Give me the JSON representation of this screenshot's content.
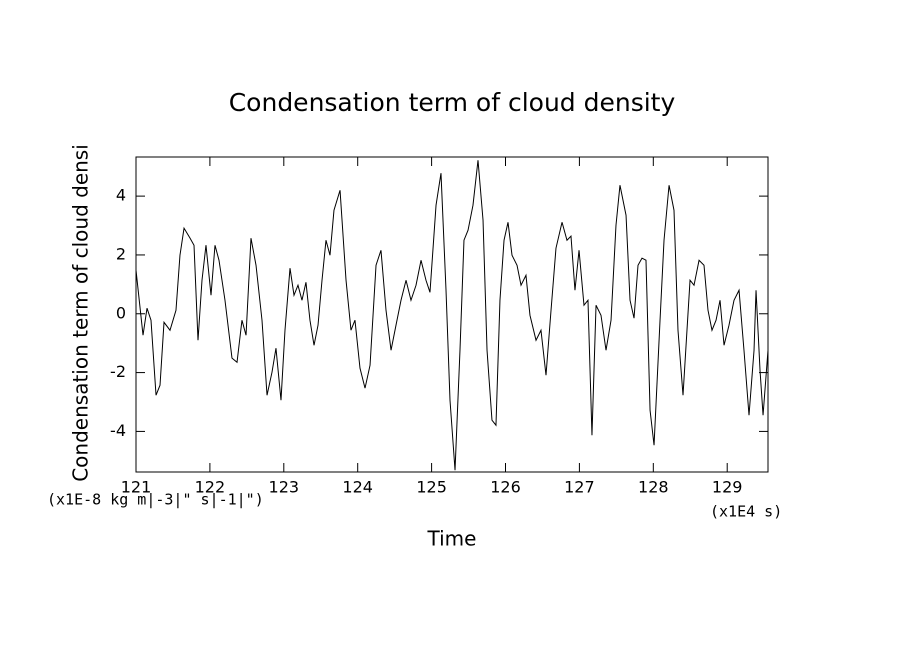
{
  "chart_data": {
    "type": "line",
    "title": "Condensation term of cloud density",
    "x_label": "Time",
    "y_label": "Condensation term of cloud densi",
    "x_unit": "(x1E4 s)",
    "y_unit": "(x1E-8 kg m|-3|\" s|-1|\")",
    "x": [
      121.0,
      121.095,
      121.149,
      121.203,
      121.271,
      121.325,
      121.379,
      121.46,
      121.541,
      121.595,
      121.65,
      121.731,
      121.785,
      121.839,
      121.893,
      121.947,
      122.015,
      122.069,
      122.123,
      122.204,
      122.299,
      122.367,
      122.434,
      122.489,
      122.556,
      122.624,
      122.705,
      122.773,
      122.84,
      122.894,
      122.962,
      123.016,
      123.084,
      123.138,
      123.192,
      123.246,
      123.3,
      123.354,
      123.409,
      123.463,
      123.517,
      123.571,
      123.625,
      123.679,
      123.761,
      123.842,
      123.909,
      123.963,
      124.031,
      124.099,
      124.167,
      124.248,
      124.315,
      124.383,
      124.451,
      124.518,
      124.586,
      124.654,
      124.721,
      124.789,
      124.857,
      124.924,
      124.978,
      125.06,
      125.127,
      125.195,
      125.249,
      125.317,
      125.384,
      125.438,
      125.493,
      125.56,
      125.628,
      125.696,
      125.75,
      125.817,
      125.871,
      125.925,
      125.98,
      126.034,
      126.088,
      126.156,
      126.21,
      126.277,
      126.331,
      126.413,
      126.48,
      126.548,
      126.616,
      126.683,
      126.765,
      126.832,
      126.886,
      126.94,
      126.995,
      127.062,
      127.116,
      127.17,
      127.225,
      127.292,
      127.36,
      127.428,
      127.495,
      127.549,
      127.631,
      127.685,
      127.739,
      127.793,
      127.847,
      127.901,
      127.956,
      128.01,
      128.091,
      128.145,
      128.213,
      128.28,
      128.334,
      128.402,
      128.497,
      128.551,
      128.619,
      128.686,
      128.74,
      128.794,
      128.849,
      128.903,
      128.957,
      129.024,
      129.092,
      129.16,
      129.227,
      129.295,
      129.363,
      129.39,
      129.444,
      129.485,
      129.552
    ],
    "series": [
      {
        "color": "#000000",
        "values": [
          1.48,
          -0.73,
          0.19,
          -0.22,
          -2.77,
          -2.43,
          -0.29,
          -0.56,
          0.12,
          1.99,
          2.91,
          2.57,
          2.33,
          -0.9,
          1.14,
          2.33,
          0.63,
          2.33,
          1.82,
          0.46,
          -1.51,
          -1.65,
          -0.22,
          -0.73,
          2.57,
          1.65,
          -0.22,
          -2.77,
          -1.99,
          -1.17,
          -2.94,
          -0.56,
          1.55,
          0.63,
          0.97,
          0.46,
          1.07,
          -0.22,
          -1.07,
          -0.39,
          1.14,
          2.5,
          1.99,
          3.52,
          4.2,
          1.14,
          -0.56,
          -0.22,
          -1.85,
          -2.53,
          -1.75,
          1.65,
          2.16,
          0.12,
          -1.24,
          -0.39,
          0.46,
          1.14,
          0.46,
          0.97,
          1.82,
          1.14,
          0.73,
          3.69,
          4.78,
          0.8,
          -2.94,
          -5.32,
          -1.24,
          2.5,
          2.84,
          3.69,
          5.22,
          3.18,
          -1.24,
          -3.62,
          -3.79,
          0.46,
          2.5,
          3.11,
          1.99,
          1.65,
          0.97,
          1.31,
          -0.05,
          -0.9,
          -0.56,
          -2.09,
          0.12,
          2.23,
          3.11,
          2.5,
          2.64,
          0.8,
          2.16,
          0.29,
          0.46,
          -4.13,
          0.29,
          -0.05,
          -1.24,
          -0.22,
          3.01,
          4.37,
          3.35,
          0.46,
          -0.15,
          1.65,
          1.89,
          1.82,
          -3.28,
          -4.47,
          -0.22,
          2.5,
          4.37,
          3.52,
          -0.56,
          -2.77,
          1.14,
          0.97,
          1.82,
          1.65,
          0.12,
          -0.56,
          -0.22,
          0.46,
          -1.07,
          -0.39,
          0.46,
          0.8,
          -1.24,
          -3.45,
          -1.24,
          0.8,
          -1.92,
          -3.45,
          -1.24
        ]
      }
    ],
    "xlim": [
      121,
      129.552
    ],
    "ylim": [
      -5.38,
      5.33
    ],
    "xticks": [
      121,
      122,
      123,
      124,
      125,
      126,
      127,
      128,
      129
    ],
    "yticks": [
      -4,
      -2,
      0,
      2,
      4
    ]
  }
}
